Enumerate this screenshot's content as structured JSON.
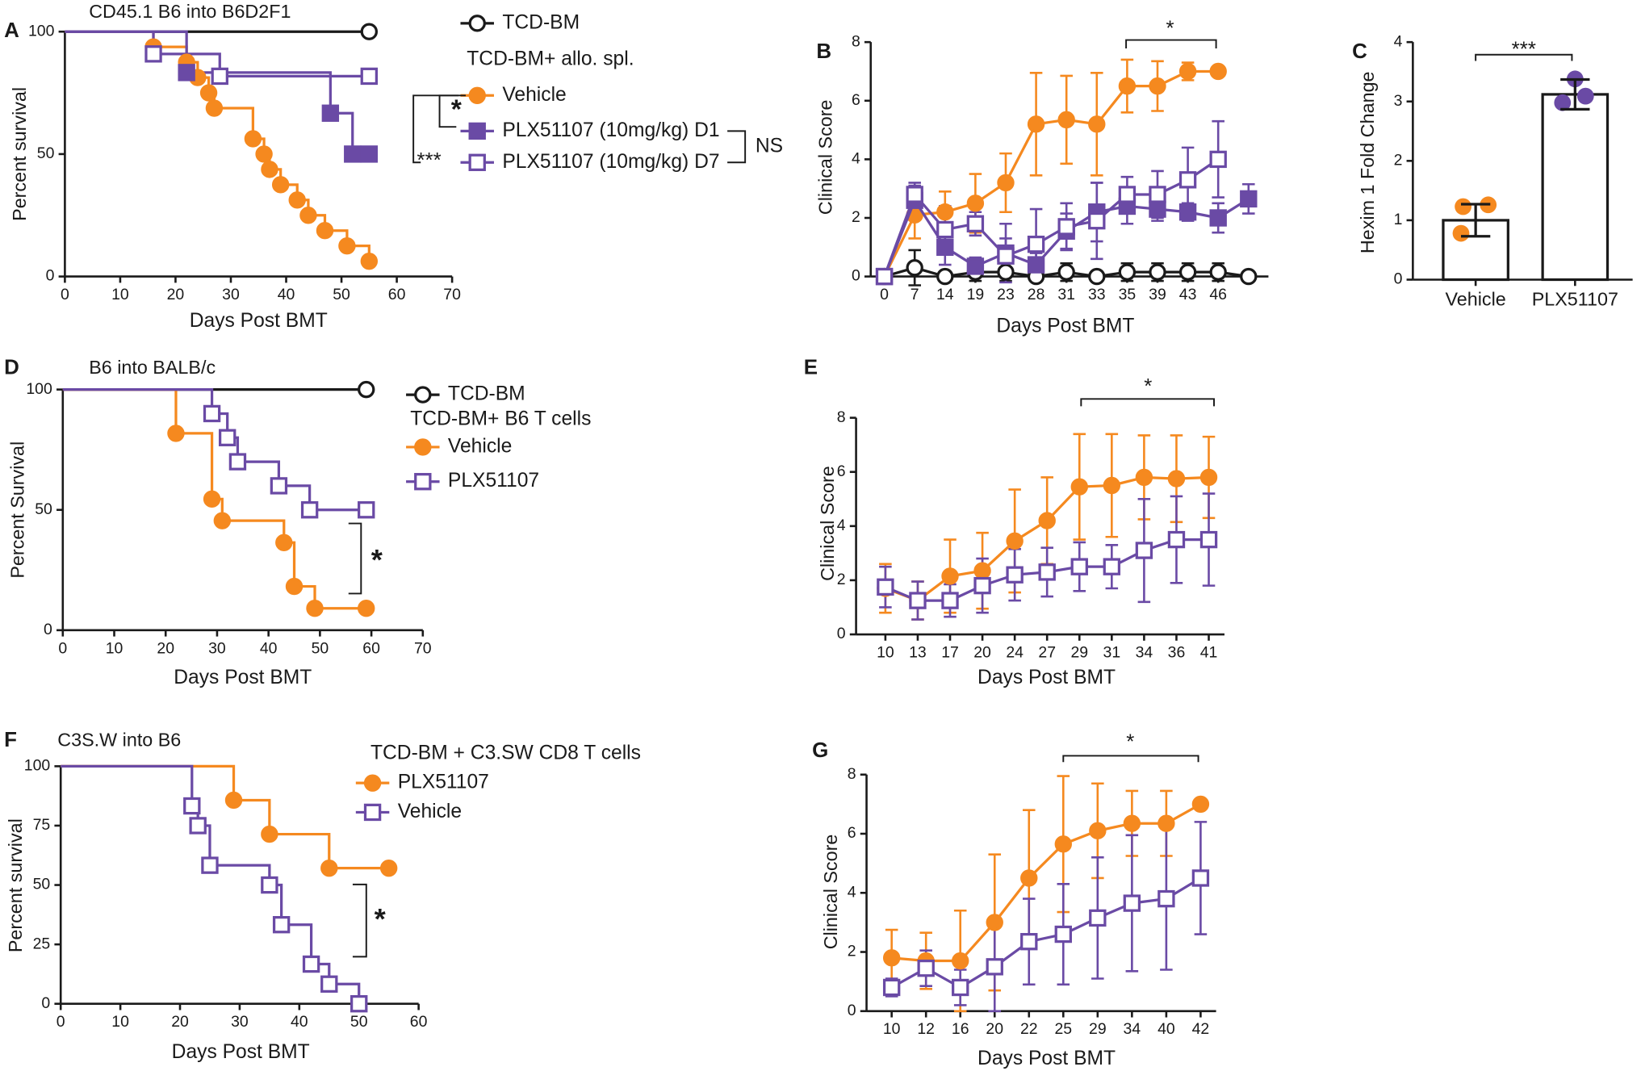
{
  "chart_data": [
    {
      "type": "survival",
      "panel": "A",
      "title": "CD45.1 B6 into B6D2F1",
      "xlabel": "Days Post BMT",
      "ylabel": "Percent survival",
      "xlim": [
        0,
        70
      ],
      "xticks": [
        0,
        10,
        20,
        30,
        40,
        50,
        60,
        70
      ],
      "ylim": [
        0,
        100
      ],
      "yticks": [
        0,
        50,
        100
      ],
      "legend_heading": "TCD-BM+ allo. spl.",
      "series": [
        {
          "name": "TCD-BM",
          "color": "#1a1a1a",
          "marker": "open-circle",
          "x": [
            0,
            55
          ],
          "values": [
            100,
            100
          ]
        },
        {
          "name": "Vehicle",
          "color": "#f5891f",
          "marker": "filled-circle",
          "x": [
            0,
            16,
            22,
            24,
            26,
            27,
            34,
            36,
            37,
            39,
            42,
            44,
            47,
            51,
            55
          ],
          "values": [
            100,
            93.75,
            87.5,
            81.25,
            75,
            68.75,
            56.25,
            50,
            43.75,
            37.5,
            31.25,
            25,
            18.75,
            12.5,
            6.25
          ]
        },
        {
          "name": "PLX51107 (10mg/kg) D1",
          "color": "#6a4aa5",
          "marker": "filled-square",
          "x": [
            0,
            22,
            48,
            52,
            55
          ],
          "values": [
            100,
            83.3,
            66.7,
            50,
            50
          ]
        },
        {
          "name": "PLX51107 (10mg/kg) D7",
          "color": "#6a4aa5",
          "marker": "open-square",
          "x": [
            0,
            16,
            28,
            55
          ],
          "values": [
            100,
            90.9,
            81.8,
            81.8
          ]
        }
      ],
      "annotations": [
        "*",
        "***",
        "NS"
      ]
    },
    {
      "type": "line",
      "panel": "B",
      "xlabel": "Days Post BMT",
      "ylabel": "Clinical  Score",
      "categories": [
        0,
        7,
        14,
        19,
        23,
        28,
        31,
        33,
        35,
        39,
        43,
        46,
        null
      ],
      "ylim": [
        0,
        8
      ],
      "yticks": [
        0,
        2,
        4,
        6,
        8
      ],
      "series": [
        {
          "color": "#1a1a1a",
          "marker": "open-circle",
          "values": [
            0,
            0.3,
            0,
            0.15,
            0.15,
            0,
            0.15,
            0,
            0.15,
            0.15,
            0.15,
            0.15,
            0
          ],
          "errors": [
            0,
            0.6,
            0,
            0.3,
            0.3,
            0,
            0.3,
            0,
            0.3,
            0.3,
            0.3,
            0.3,
            0
          ]
        },
        {
          "color": "#f5891f",
          "marker": "filled-circle",
          "values": [
            0,
            2.1,
            2.2,
            2.5,
            3.2,
            5.2,
            5.35,
            5.2,
            6.5,
            6.5,
            7.0,
            7.0,
            null
          ],
          "errors": [
            0,
            0.8,
            0.7,
            1.0,
            1.0,
            1.75,
            1.5,
            1.75,
            0.9,
            0.85,
            0.3,
            0,
            null
          ]
        },
        {
          "color": "#6a4aa5",
          "marker": "filled-square",
          "values": [
            0,
            2.6,
            1.0,
            0.35,
            0.8,
            0.4,
            1.55,
            2.2,
            2.4,
            2.3,
            2.2,
            2.0,
            2.65
          ],
          "errors": [
            0,
            0.6,
            0.6,
            0.3,
            1.0,
            0.4,
            0.6,
            1.0,
            0.6,
            0.4,
            0.3,
            0.5,
            0.5
          ]
        },
        {
          "color": "#6a4aa5",
          "marker": "open-square",
          "values": [
            0,
            2.8,
            1.6,
            1.8,
            0.7,
            1.1,
            1.7,
            1.9,
            2.8,
            2.8,
            3.3,
            4.0,
            null
          ],
          "errors": [
            0,
            0.3,
            0.8,
            0.4,
            0.6,
            1.2,
            0.8,
            1.3,
            0.6,
            0.8,
            1.1,
            1.3,
            null
          ]
        }
      ],
      "annotations": [
        "*"
      ]
    },
    {
      "type": "bar",
      "panel": "C",
      "ylabel": "Hexim 1 Fold Change",
      "categories": [
        "Vehicle",
        "PLX51107"
      ],
      "values": [
        1.0,
        3.12
      ],
      "errors": [
        0.27,
        0.25
      ],
      "points": [
        [
          1.23,
          1.26,
          0.78
        ],
        [
          3.38,
          2.98,
          3.09
        ]
      ],
      "point_colors": [
        "#f5891f",
        "#6a4aa5"
      ],
      "ylim": [
        0,
        4
      ],
      "yticks": [
        0,
        1,
        2,
        3,
        4
      ],
      "annotations": [
        "***"
      ]
    },
    {
      "type": "survival",
      "panel": "D",
      "title": "B6 into BALB/c",
      "xlabel": "Days Post BMT",
      "ylabel": "Percent Survival",
      "xlim": [
        0,
        70
      ],
      "xticks": [
        0,
        10,
        20,
        30,
        40,
        50,
        60,
        70
      ],
      "ylim": [
        0,
        100
      ],
      "yticks": [
        0,
        50,
        100
      ],
      "legend_heading": "TCD-BM+ B6 T cells",
      "series": [
        {
          "name": "TCD-BM",
          "color": "#1a1a1a",
          "marker": "open-circle",
          "x": [
            0,
            59
          ],
          "values": [
            100,
            100
          ]
        },
        {
          "name": "Vehicle",
          "color": "#f5891f",
          "marker": "filled-circle",
          "x": [
            0,
            22,
            29,
            31,
            43,
            45,
            49,
            59
          ],
          "values": [
            100,
            81.8,
            54.5,
            45.5,
            36.4,
            18.2,
            9.1,
            9.1
          ]
        },
        {
          "name": "PLX51107",
          "color": "#6a4aa5",
          "marker": "open-square",
          "x": [
            0,
            29,
            32,
            34,
            42,
            48,
            59
          ],
          "values": [
            100,
            90,
            80,
            70,
            60,
            50,
            50
          ]
        }
      ],
      "annotations": [
        "*"
      ]
    },
    {
      "type": "line",
      "panel": "E",
      "xlabel": "Days Post BMT",
      "ylabel": "Clinical Score",
      "categories": [
        10,
        13,
        17,
        20,
        24,
        27,
        29,
        31,
        34,
        36,
        41
      ],
      "ylim": [
        0,
        8
      ],
      "yticks": [
        0,
        2,
        4,
        6,
        8
      ],
      "series": [
        {
          "color": "#f5891f",
          "marker": "filled-circle",
          "values": [
            1.7,
            1.25,
            2.15,
            2.35,
            3.45,
            4.2,
            5.45,
            5.5,
            5.8,
            5.75,
            5.8
          ],
          "errors": [
            0.9,
            0.7,
            1.35,
            1.4,
            1.9,
            1.6,
            1.95,
            1.9,
            1.55,
            1.6,
            1.5
          ]
        },
        {
          "color": "#6a4aa5",
          "marker": "open-square",
          "values": [
            1.75,
            1.25,
            1.25,
            1.8,
            2.2,
            2.3,
            2.5,
            2.5,
            3.1,
            3.5,
            3.5
          ],
          "errors": [
            0.75,
            0.7,
            0.6,
            1.0,
            0.95,
            0.9,
            0.9,
            0.8,
            1.9,
            1.6,
            1.7
          ]
        }
      ],
      "annotations": [
        "*"
      ]
    },
    {
      "type": "survival",
      "panel": "F",
      "title": "C3S.W into B6",
      "xlabel": "Days Post BMT",
      "ylabel": "Percent survival",
      "xlim": [
        0,
        60
      ],
      "xticks": [
        0,
        10,
        20,
        30,
        40,
        50,
        60
      ],
      "ylim": [
        0,
        100
      ],
      "yticks": [
        0,
        25,
        50,
        75,
        100
      ],
      "legend_heading": "TCD-BM +  C3.SW CD8 T cells",
      "series": [
        {
          "name": "PLX51107",
          "color": "#f5891f",
          "marker": "filled-circle",
          "x": [
            0,
            29,
            35,
            45,
            55
          ],
          "values": [
            100,
            85.7,
            71.4,
            57.1,
            57.1
          ]
        },
        {
          "name": "Vehicle",
          "color": "#6a4aa5",
          "marker": "open-square",
          "x": [
            0,
            22,
            23,
            25,
            35,
            37,
            42,
            45,
            50
          ],
          "values": [
            100,
            83.3,
            75,
            58.3,
            50,
            33.3,
            16.7,
            8.3,
            0
          ]
        }
      ],
      "annotations": [
        "*"
      ]
    },
    {
      "type": "line",
      "panel": "G",
      "xlabel": "Days Post BMT",
      "ylabel": "Clinical Score",
      "categories": [
        10,
        12,
        16,
        20,
        22,
        25,
        29,
        34,
        40,
        42
      ],
      "ylim": [
        0,
        8
      ],
      "yticks": [
        0,
        2,
        4,
        6,
        8
      ],
      "series": [
        {
          "color": "#f5891f",
          "marker": "filled-circle",
          "values": [
            1.8,
            1.7,
            1.7,
            3.0,
            4.5,
            5.65,
            6.1,
            6.35,
            6.35,
            7.0
          ],
          "errors": [
            0.95,
            0.95,
            1.7,
            2.3,
            2.3,
            2.3,
            1.6,
            1.1,
            1.1,
            0
          ]
        },
        {
          "color": "#6a4aa5",
          "marker": "open-square",
          "values": [
            0.8,
            1.45,
            0.8,
            1.5,
            2.35,
            2.6,
            3.15,
            3.65,
            3.8,
            4.5
          ],
          "errors": [
            0.3,
            0.6,
            0.6,
            1.5,
            1.45,
            1.7,
            2.05,
            2.3,
            2.4,
            1.9
          ]
        }
      ],
      "annotations": [
        "*"
      ]
    }
  ]
}
